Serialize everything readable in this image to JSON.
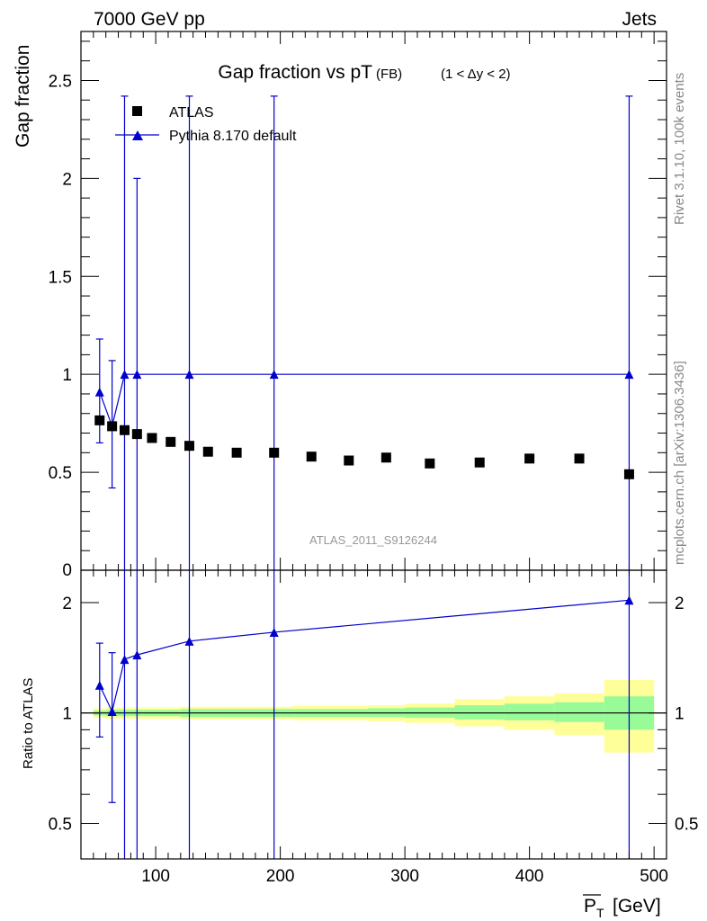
{
  "header": {
    "left": "7000 GeV pp",
    "right": "Jets"
  },
  "side_labels": {
    "rivet": "Rivet 3.1.10,  100k events",
    "mcplots": "mcplots.cern.ch [arXiv:1306.3436]"
  },
  "watermark": "ATLAS_2011_S9126244",
  "chart_data": {
    "title": "Gap fraction vs pT",
    "title_sub": "(FB)",
    "title_range": "(1 < Δy < 2)",
    "type": "scatter",
    "x_label_symbol": "P",
    "x_label_sub": "T",
    "x_label_unit": "[GeV]",
    "x_range": [
      40,
      510
    ],
    "x_ticks": [
      100,
      200,
      300,
      400,
      500
    ],
    "legend": {
      "placement": "top-left",
      "data_label": "ATLAS",
      "mc_label": "Pythia 8.170 default"
    },
    "main": {
      "ylabel": "Gap fraction",
      "ylim": [
        0,
        2.75
      ],
      "y_ticks": [
        0.5,
        1,
        1.5,
        2,
        2.5
      ],
      "y_tick_labels": [
        "0.5",
        "1",
        "1.5",
        "2",
        "2.5"
      ],
      "y_zero_label": "0",
      "data_points": [
        {
          "x": 55,
          "y": 0.765
        },
        {
          "x": 65,
          "y": 0.735
        },
        {
          "x": 75,
          "y": 0.715
        },
        {
          "x": 85,
          "y": 0.695
        },
        {
          "x": 97,
          "y": 0.675
        },
        {
          "x": 112,
          "y": 0.655
        },
        {
          "x": 127,
          "y": 0.635
        },
        {
          "x": 142,
          "y": 0.605
        },
        {
          "x": 165,
          "y": 0.6
        },
        {
          "x": 195,
          "y": 0.6
        },
        {
          "x": 225,
          "y": 0.58
        },
        {
          "x": 255,
          "y": 0.56
        },
        {
          "x": 285,
          "y": 0.575
        },
        {
          "x": 320,
          "y": 0.545
        },
        {
          "x": 360,
          "y": 0.55
        },
        {
          "x": 400,
          "y": 0.57
        },
        {
          "x": 440,
          "y": 0.57
        },
        {
          "x": 480,
          "y": 0.49
        }
      ],
      "mc_points": [
        {
          "x": 55,
          "y": 0.91,
          "lo": 0.65,
          "hi": 1.18
        },
        {
          "x": 65,
          "y": 0.735,
          "lo": 0.42,
          "hi": 1.07
        },
        {
          "x": 75,
          "y": 1.0,
          "lo": 0.0,
          "hi": 2.42
        },
        {
          "x": 85,
          "y": 1.0,
          "lo": 0.0,
          "hi": 2.0
        },
        {
          "x": 127,
          "y": 1.0,
          "lo": 0.0,
          "hi": 2.42
        },
        {
          "x": 195,
          "y": 1.0,
          "lo": 0.0,
          "hi": 2.42
        },
        {
          "x": 480,
          "y": 1.0,
          "lo": 0.0,
          "hi": 2.42
        }
      ]
    },
    "ratio": {
      "ylabel": "Ratio to ATLAS",
      "scale": "log",
      "ylim": [
        0.4,
        2.45
      ],
      "y_ticks": [
        0.5,
        1,
        2
      ],
      "y_tick_labels": [
        "0.5",
        "1",
        "2"
      ],
      "mc_points": [
        {
          "x": 55,
          "y": 1.19,
          "lo": 0.86,
          "hi": 1.55
        },
        {
          "x": 65,
          "y": 1.01,
          "lo": 0.57,
          "hi": 1.46
        },
        {
          "x": 75,
          "y": 1.4,
          "lo": 0.0,
          "hi": 2.45
        },
        {
          "x": 85,
          "y": 1.44,
          "lo": 0.0,
          "hi": 2.45
        },
        {
          "x": 127,
          "y": 1.57,
          "lo": 0.0,
          "hi": 2.45
        },
        {
          "x": 195,
          "y": 1.66,
          "lo": 0.0,
          "hi": 2.45
        },
        {
          "x": 480,
          "y": 2.03,
          "lo": 0.0,
          "hi": 2.45
        }
      ],
      "bands": [
        {
          "x0": 50,
          "x1": 60,
          "g": [
            0.985,
            1.015
          ],
          "y": [
            0.97,
            1.03
          ]
        },
        {
          "x0": 60,
          "x1": 70,
          "g": [
            0.98,
            1.02
          ],
          "y": [
            0.965,
            1.035
          ]
        },
        {
          "x0": 70,
          "x1": 80,
          "g": [
            0.98,
            1.02
          ],
          "y": [
            0.965,
            1.035
          ]
        },
        {
          "x0": 80,
          "x1": 90,
          "g": [
            0.98,
            1.02
          ],
          "y": [
            0.965,
            1.035
          ]
        },
        {
          "x0": 90,
          "x1": 105,
          "g": [
            0.98,
            1.02
          ],
          "y": [
            0.965,
            1.035
          ]
        },
        {
          "x0": 105,
          "x1": 120,
          "g": [
            0.98,
            1.02
          ],
          "y": [
            0.965,
            1.035
          ]
        },
        {
          "x0": 120,
          "x1": 135,
          "g": [
            0.975,
            1.025
          ],
          "y": [
            0.96,
            1.04
          ]
        },
        {
          "x0": 135,
          "x1": 150,
          "g": [
            0.975,
            1.025
          ],
          "y": [
            0.96,
            1.04
          ]
        },
        {
          "x0": 150,
          "x1": 180,
          "g": [
            0.975,
            1.025
          ],
          "y": [
            0.96,
            1.04
          ]
        },
        {
          "x0": 180,
          "x1": 210,
          "g": [
            0.975,
            1.025
          ],
          "y": [
            0.96,
            1.04
          ]
        },
        {
          "x0": 210,
          "x1": 240,
          "g": [
            0.975,
            1.025
          ],
          "y": [
            0.955,
            1.045
          ]
        },
        {
          "x0": 240,
          "x1": 270,
          "g": [
            0.975,
            1.025
          ],
          "y": [
            0.955,
            1.045
          ]
        },
        {
          "x0": 270,
          "x1": 300,
          "g": [
            0.975,
            1.03
          ],
          "y": [
            0.95,
            1.05
          ]
        },
        {
          "x0": 300,
          "x1": 340,
          "g": [
            0.97,
            1.035
          ],
          "y": [
            0.94,
            1.06
          ]
        },
        {
          "x0": 340,
          "x1": 380,
          "g": [
            0.96,
            1.05
          ],
          "y": [
            0.92,
            1.09
          ]
        },
        {
          "x0": 380,
          "x1": 420,
          "g": [
            0.955,
            1.06
          ],
          "y": [
            0.9,
            1.11
          ]
        },
        {
          "x0": 420,
          "x1": 460,
          "g": [
            0.945,
            1.07
          ],
          "y": [
            0.87,
            1.13
          ]
        },
        {
          "x0": 460,
          "x1": 500,
          "g": [
            0.9,
            1.11
          ],
          "y": [
            0.78,
            1.23
          ]
        }
      ]
    }
  },
  "colors": {
    "data": "#000000",
    "mc": "#0000cc",
    "band_inner": "#98fb98",
    "band_outer": "#ffff99",
    "side_text": "#888888"
  }
}
